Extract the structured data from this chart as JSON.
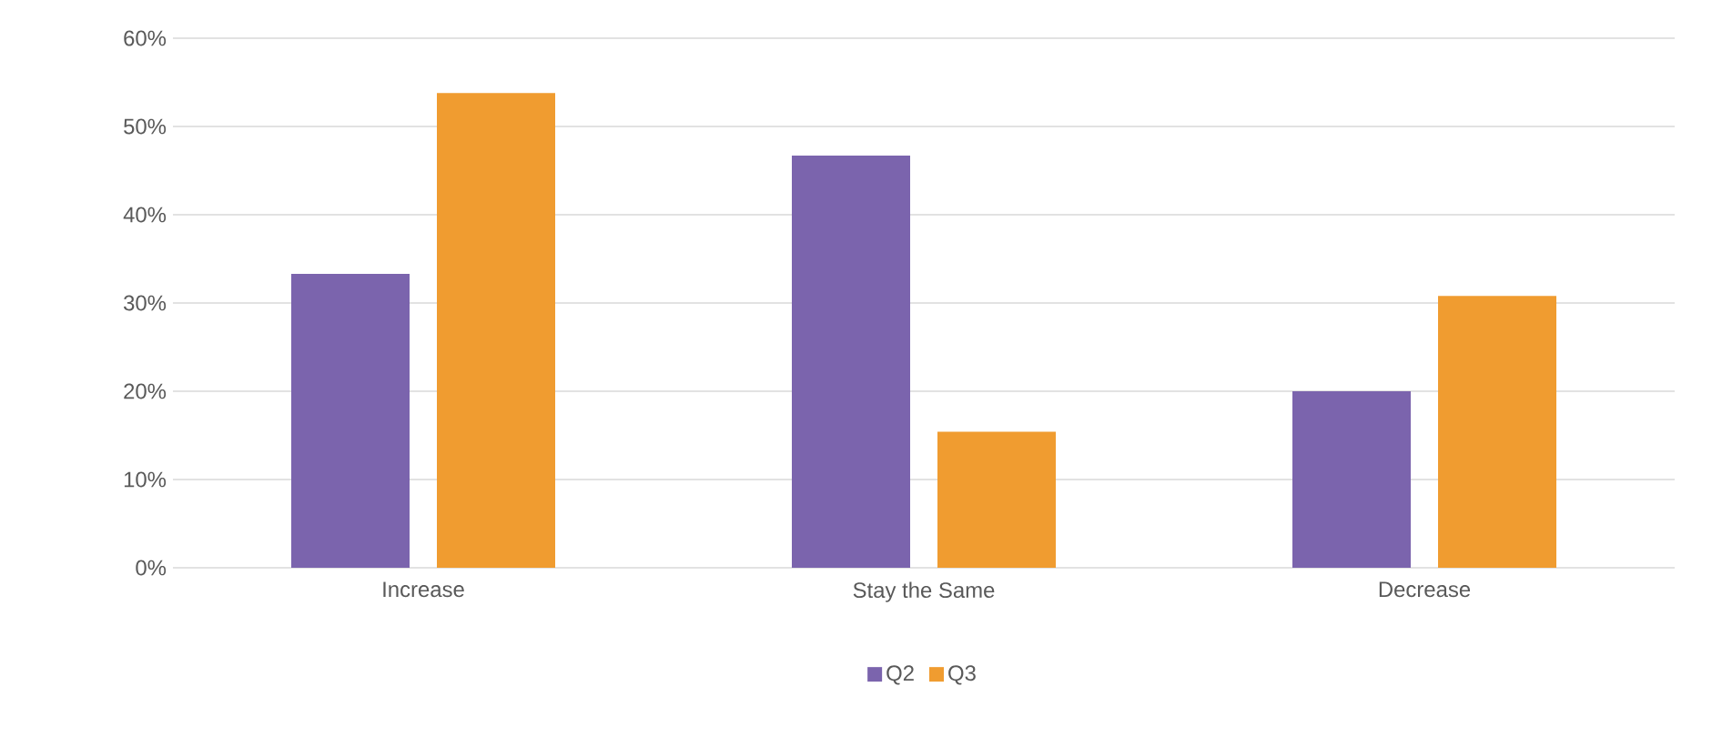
{
  "chart_data": {
    "type": "bar",
    "categories": [
      "Increase",
      "Stay the Same",
      "Decrease"
    ],
    "series": [
      {
        "name": "Q2",
        "color": "#7b64ad",
        "values": [
          33.3,
          46.7,
          20.0
        ]
      },
      {
        "name": "Q3",
        "color": "#f09c30",
        "values": [
          53.8,
          15.4,
          30.8
        ]
      }
    ],
    "ylim": [
      0,
      60
    ],
    "yticks": [
      {
        "value": 0,
        "label": "0%"
      },
      {
        "value": 10,
        "label": "10%"
      },
      {
        "value": 20,
        "label": "20%"
      },
      {
        "value": 30,
        "label": "30%"
      },
      {
        "value": 40,
        "label": "40%"
      },
      {
        "value": 50,
        "label": "50%"
      },
      {
        "value": 60,
        "label": "60%"
      }
    ],
    "grid": "y",
    "legend": "bottom"
  }
}
